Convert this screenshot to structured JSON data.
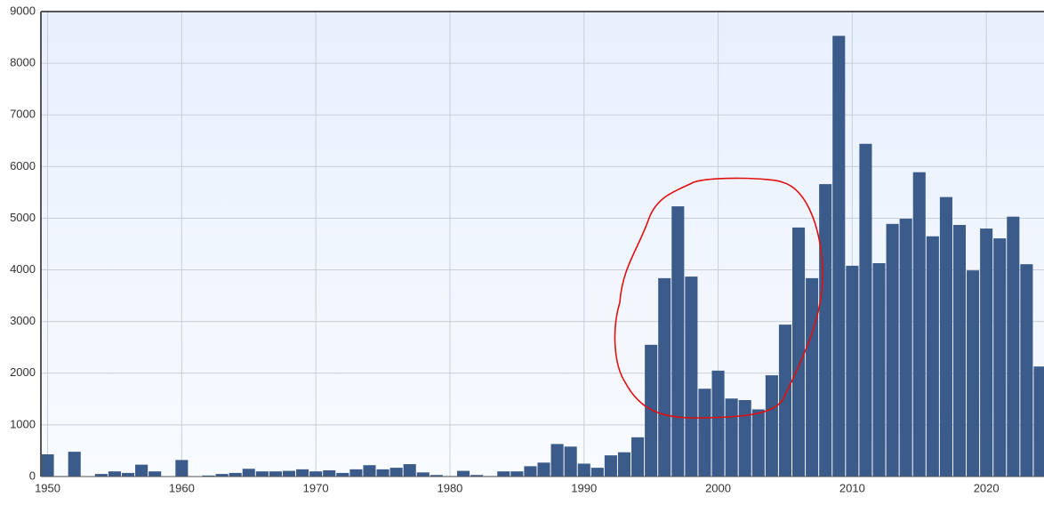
{
  "chart_data": {
    "type": "bar",
    "x": [
      1950,
      1951,
      1952,
      1953,
      1954,
      1955,
      1956,
      1957,
      1958,
      1959,
      1960,
      1961,
      1962,
      1963,
      1964,
      1965,
      1966,
      1967,
      1968,
      1969,
      1970,
      1971,
      1972,
      1973,
      1974,
      1975,
      1976,
      1977,
      1978,
      1979,
      1980,
      1981,
      1982,
      1983,
      1984,
      1985,
      1986,
      1987,
      1988,
      1989,
      1990,
      1991,
      1992,
      1993,
      1994,
      1995,
      1996,
      1997,
      1998,
      1999,
      2000,
      2001,
      2002,
      2003,
      2004,
      2005,
      2006,
      2007,
      2008,
      2009,
      2010,
      2011,
      2012,
      2013,
      2014,
      2015,
      2016,
      2017,
      2018,
      2019,
      2020,
      2021,
      2022,
      2023,
      2024
    ],
    "values": [
      430,
      10,
      480,
      0,
      50,
      100,
      70,
      230,
      100,
      0,
      320,
      0,
      20,
      50,
      70,
      150,
      100,
      100,
      110,
      140,
      100,
      120,
      70,
      140,
      220,
      140,
      170,
      240,
      80,
      30,
      10,
      110,
      30,
      10,
      100,
      100,
      200,
      270,
      630,
      580,
      250,
      170,
      410,
      470,
      760,
      2550,
      3840,
      5230,
      3870,
      1700,
      2050,
      1510,
      1480,
      1300,
      1960,
      2940,
      4820,
      3840,
      5660,
      8530,
      4080,
      6440,
      4130,
      4890,
      4990,
      5890,
      4650,
      5410,
      4870,
      3990,
      4800,
      4610,
      5030,
      4110,
      2130
    ],
    "color": "#3b5b8a",
    "xlim": [
      1949.5,
      2024.3
    ],
    "xticks": [
      1950,
      1960,
      1970,
      1980,
      1990,
      2000,
      2010,
      2020
    ],
    "ylim": [
      0,
      9000
    ],
    "yticks": [
      0,
      1000,
      2000,
      3000,
      4000,
      5000,
      6000,
      7000,
      8000,
      9000
    ],
    "grid": true
  }
}
